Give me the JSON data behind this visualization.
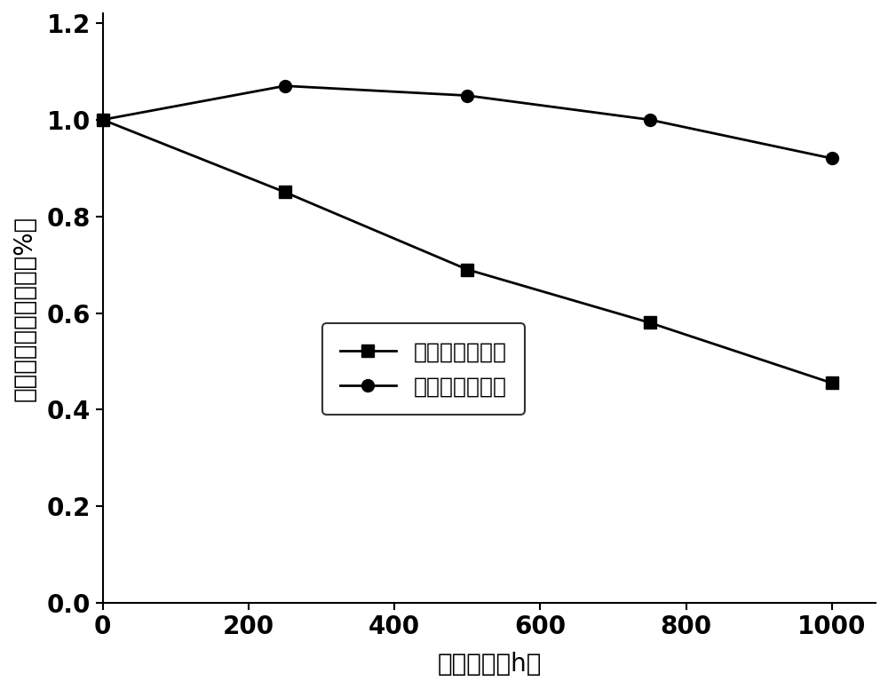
{
  "series_no_protection": {
    "x": [
      0,
      250,
      500,
      750,
      1000
    ],
    "y": [
      1.0,
      0.85,
      0.69,
      0.58,
      0.455
    ],
    "label": "无小分子保护层",
    "marker": "s",
    "color": "#000000",
    "linewidth": 2.0,
    "markersize": 10
  },
  "series_with_protection": {
    "x": [
      0,
      250,
      500,
      750,
      1000
    ],
    "y": [
      1.0,
      1.07,
      1.05,
      1.0,
      0.92
    ],
    "label": "有小分子保护层",
    "marker": "o",
    "color": "#000000",
    "linewidth": 2.0,
    "markersize": 10
  },
  "xlabel": "老化时间（h）",
  "ylabel": "标准化光电转换效率（%）",
  "xlim": [
    0,
    1060
  ],
  "ylim": [
    0.0,
    1.22
  ],
  "xticks": [
    0,
    200,
    400,
    600,
    800,
    1000
  ],
  "yticks": [
    0.0,
    0.2,
    0.4,
    0.6,
    0.8,
    1.0,
    1.2
  ],
  "ytick_labels": [
    "0.0",
    "0.2",
    "0.4",
    "0.6",
    "0.8",
    "1.0",
    "1.2"
  ],
  "xtick_labels": [
    "0",
    "200",
    "400",
    "600",
    "800",
    "1000"
  ],
  "background_color": "#ffffff",
  "font_size_labels": 20,
  "font_size_ticks": 20,
  "font_size_legend": 18
}
